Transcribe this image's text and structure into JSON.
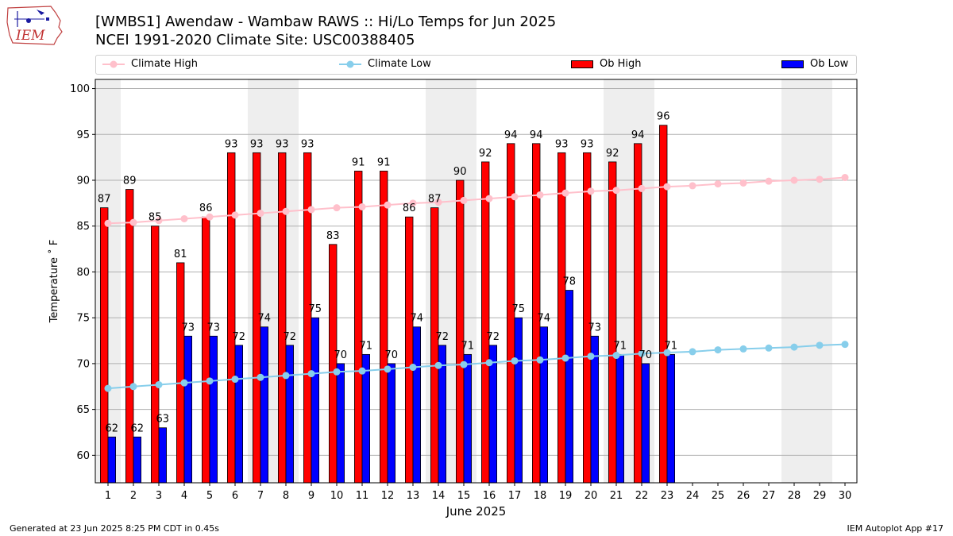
{
  "header": {
    "logo_text": "IEM",
    "title_line1": "[WMBS1] Awendaw - Wambaw RAWS :: Hi/Lo Temps for Jun 2025",
    "title_line2": "NCEI 1991-2020 Climate Site: USC00388405"
  },
  "legend": {
    "climate_high": "Climate High",
    "climate_low": "Climate Low",
    "ob_high": "Ob High",
    "ob_low": "Ob Low"
  },
  "colors": {
    "ob_high": "#ff0000",
    "ob_low": "#0000ff",
    "climate_high": "#ffc0cb",
    "climate_low": "#87ceeb",
    "weekend_shade": "#eeeeee",
    "grid": "#b0b0b0"
  },
  "chart_data": {
    "type": "bar",
    "title": "[WMBS1] Awendaw - Wambaw RAWS :: Hi/Lo Temps for Jun 2025",
    "subtitle": "NCEI 1991-2020 Climate Site: USC00388405",
    "xlabel": "June 2025",
    "ylabel": "Temperature ˚ F",
    "ylim": [
      57,
      101
    ],
    "yticks": [
      60,
      65,
      70,
      75,
      80,
      85,
      90,
      95,
      100
    ],
    "grid": true,
    "days": [
      1,
      2,
      3,
      4,
      5,
      6,
      7,
      8,
      9,
      10,
      11,
      12,
      13,
      14,
      15,
      16,
      17,
      18,
      19,
      20,
      21,
      22,
      23,
      24,
      25,
      26,
      27,
      28,
      29,
      30
    ],
    "weekend_days": [
      1,
      7,
      8,
      14,
      15,
      21,
      22,
      28,
      29
    ],
    "series": [
      {
        "name": "Ob High",
        "kind": "bar",
        "values": [
          87,
          89,
          85,
          81,
          86,
          93,
          93,
          93,
          93,
          83,
          91,
          91,
          86,
          87,
          90,
          92,
          94,
          94,
          93,
          93,
          92,
          94,
          96
        ]
      },
      {
        "name": "Ob Low",
        "kind": "bar",
        "values": [
          62,
          62,
          63,
          73,
          73,
          72,
          74,
          72,
          75,
          70,
          71,
          70,
          74,
          72,
          71,
          72,
          75,
          74,
          78,
          73,
          71,
          70,
          71
        ]
      },
      {
        "name": "Climate High",
        "kind": "line",
        "values": [
          85.3,
          85.4,
          85.6,
          85.8,
          86.0,
          86.2,
          86.4,
          86.6,
          86.8,
          87.0,
          87.1,
          87.3,
          87.5,
          87.6,
          87.8,
          88.0,
          88.2,
          88.4,
          88.6,
          88.8,
          88.9,
          89.1,
          89.3,
          89.4,
          89.6,
          89.7,
          89.9,
          90.0,
          90.1,
          90.3
        ]
      },
      {
        "name": "Climate Low",
        "kind": "line",
        "values": [
          67.3,
          67.5,
          67.7,
          67.9,
          68.1,
          68.3,
          68.5,
          68.7,
          68.9,
          69.1,
          69.2,
          69.4,
          69.6,
          69.8,
          69.9,
          70.1,
          70.3,
          70.4,
          70.6,
          70.8,
          70.9,
          71.1,
          71.2,
          71.3,
          71.5,
          71.6,
          71.7,
          71.8,
          72.0,
          72.1
        ]
      }
    ]
  },
  "footer": {
    "generated": "Generated at 23 Jun 2025 8:25 PM CDT in 0.45s",
    "app": "IEM Autoplot App #17"
  }
}
